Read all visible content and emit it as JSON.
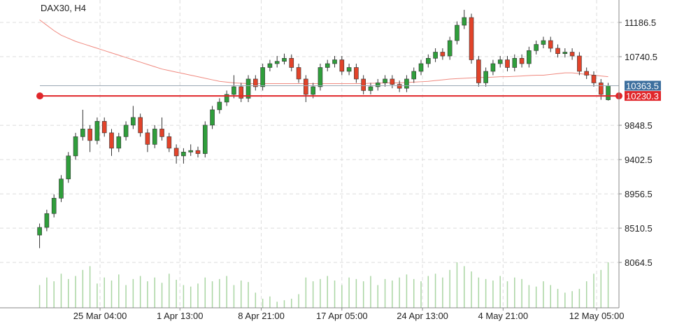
{
  "chart_data": {
    "type": "candlestick",
    "title": "DAX30, H4",
    "xlim": [
      -5.5,
      80.5
    ],
    "xticks": [
      {
        "value": 8.4,
        "label": "25 Mar 04:00"
      },
      {
        "value": 19.5,
        "label": "1 Apr 13:00"
      },
      {
        "value": 30.8,
        "label": "8 Apr 21:00"
      },
      {
        "value": 42,
        "label": "17 Apr 05:00"
      },
      {
        "value": 53.2,
        "label": "24 Apr 13:00"
      },
      {
        "value": 64.4,
        "label": "4 May 21:00"
      },
      {
        "value": 77.4,
        "label": "12 May 05:00"
      }
    ],
    "ylim": [
      7474,
      11478
    ],
    "yticks": [
      11186.5,
      10740.5,
      9848.5,
      9402.5,
      8956.5,
      8510.5,
      8064.5
    ],
    "grid": true,
    "up_color": "#2f9e3b",
    "down_color": "#e2432a",
    "open": [
      8420,
      8520,
      8700,
      8900,
      9150,
      9450,
      9700,
      9800,
      9650,
      9900,
      9750,
      9550,
      9700,
      9850,
      9950,
      9750,
      9600,
      9800,
      9700,
      9550,
      9450,
      9500,
      9520,
      9480,
      9850,
      10050,
      10150,
      10250,
      10350,
      10200,
      10450,
      10350,
      10600,
      10650,
      10680,
      10720,
      10600,
      10450,
      10250,
      10350,
      10600,
      10650,
      10700,
      10550,
      10600,
      10450,
      10300,
      10350,
      10400,
      10450,
      10380,
      10330,
      10450,
      10550,
      10650,
      10720,
      10800,
      10750,
      10950,
      11150,
      11250,
      10700,
      10400,
      10550,
      10650,
      10700,
      10600,
      10720,
      10650,
      10820,
      10900,
      10950,
      10850,
      10780,
      10800,
      10750,
      10550,
      10500,
      10400,
      10180
    ],
    "high": [
      8570,
      8750,
      8950,
      9200,
      9500,
      9750,
      10050,
      9850,
      9950,
      9950,
      9800,
      9750,
      9900,
      10100,
      10000,
      9800,
      9850,
      9950,
      9750,
      9600,
      9550,
      9600,
      9570,
      9900,
      10100,
      10200,
      10300,
      10500,
      10400,
      10500,
      10500,
      10650,
      10700,
      10750,
      10780,
      10770,
      10650,
      10500,
      10400,
      10650,
      10700,
      10750,
      10750,
      10650,
      10650,
      10500,
      10400,
      10450,
      10500,
      10500,
      10430,
      10500,
      10600,
      10700,
      10770,
      10850,
      10850,
      11000,
      11200,
      11350,
      11300,
      10750,
      10600,
      10700,
      10750,
      10750,
      10770,
      10770,
      10870,
      10950,
      11000,
      11000,
      10900,
      10850,
      10850,
      10800,
      10600,
      10550,
      10450,
      10400
    ],
    "low": [
      8250,
      8470,
      8650,
      8850,
      9100,
      9400,
      9650,
      9500,
      9600,
      9700,
      9450,
      9500,
      9650,
      9800,
      9700,
      9500,
      9550,
      9650,
      9500,
      9350,
      9350,
      9450,
      9430,
      9430,
      9800,
      10000,
      10100,
      10200,
      10150,
      10150,
      10300,
      10300,
      10550,
      10600,
      10640,
      10550,
      10400,
      10150,
      10200,
      10300,
      10550,
      10600,
      10500,
      10500,
      10400,
      10250,
      10250,
      10300,
      10350,
      10330,
      10280,
      10280,
      10400,
      10500,
      10600,
      10670,
      10700,
      10700,
      10900,
      11100,
      10650,
      10350,
      10350,
      10500,
      10600,
      10550,
      10550,
      10600,
      10600,
      10770,
      10850,
      10800,
      10730,
      10730,
      10700,
      10500,
      10450,
      10350,
      10180,
      10170
    ],
    "close": [
      8520,
      8700,
      8900,
      9150,
      9450,
      9700,
      9800,
      9650,
      9900,
      9750,
      9550,
      9700,
      9850,
      9950,
      9750,
      9600,
      9800,
      9700,
      9550,
      9450,
      9500,
      9520,
      9480,
      9850,
      10050,
      10150,
      10250,
      10350,
      10200,
      10450,
      10350,
      10600,
      10650,
      10680,
      10720,
      10600,
      10450,
      10250,
      10350,
      10600,
      10650,
      10700,
      10550,
      10600,
      10450,
      10300,
      10350,
      10400,
      10450,
      10380,
      10330,
      10450,
      10550,
      10650,
      10720,
      10800,
      10750,
      10950,
      11150,
      11250,
      10700,
      10400,
      10550,
      10650,
      10700,
      10600,
      10720,
      10650,
      10820,
      10900,
      10950,
      10850,
      10780,
      10800,
      10750,
      10550,
      10500,
      10400,
      10250,
      10363
    ],
    "moving_average": {
      "color": "#f08a80",
      "values": [
        11220,
        11150,
        11080,
        11020,
        10980,
        10940,
        10910,
        10880,
        10850,
        10820,
        10790,
        10760,
        10730,
        10700,
        10670,
        10640,
        10610,
        10580,
        10560,
        10540,
        10520,
        10500,
        10480,
        10460,
        10440,
        10420,
        10410,
        10400,
        10395,
        10390,
        10390,
        10390,
        10390,
        10390,
        10390,
        10390,
        10390,
        10390,
        10390,
        10390,
        10390,
        10390,
        10390,
        10390,
        10390,
        10390,
        10395,
        10395,
        10400,
        10400,
        10400,
        10405,
        10410,
        10415,
        10420,
        10430,
        10440,
        10450,
        10455,
        10460,
        10465,
        10470,
        10470,
        10475,
        10480,
        10480,
        10485,
        10490,
        10495,
        10500,
        10500,
        10510,
        10520,
        10530,
        10530,
        10520,
        10510,
        10500,
        10490,
        10480
      ]
    },
    "volume": {
      "color": "#a9d5a2",
      "values": [
        30,
        40,
        35,
        45,
        38,
        42,
        50,
        55,
        32,
        40,
        36,
        44,
        30,
        38,
        42,
        35,
        40,
        33,
        45,
        37,
        30,
        28,
        32,
        40,
        35,
        38,
        42,
        30,
        36,
        34,
        20,
        12,
        15,
        8,
        10,
        12,
        18,
        40,
        35,
        38,
        42,
        36,
        30,
        40,
        38,
        35,
        42,
        30,
        38,
        36,
        40,
        44,
        38,
        35,
        42,
        45,
        40,
        50,
        60,
        55,
        48,
        40,
        38,
        36,
        42,
        35,
        40,
        38,
        30,
        28,
        35,
        30,
        25,
        20,
        22,
        25,
        35,
        45,
        50,
        60
      ]
    },
    "price_lines": [
      {
        "value": 10363.5,
        "color": "#9aa7b4",
        "label_color": "#3d6f9e"
      },
      {
        "value": 10230.3,
        "color": "#e0262a",
        "label_color": "#e0262a"
      }
    ]
  }
}
